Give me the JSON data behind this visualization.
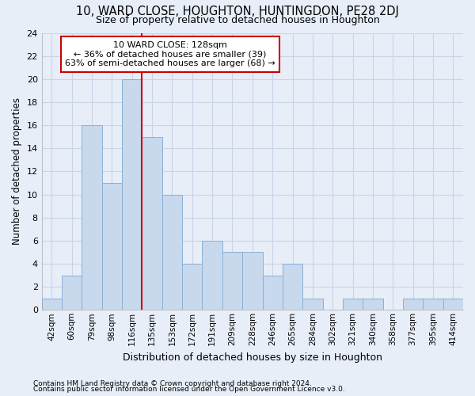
{
  "title": "10, WARD CLOSE, HOUGHTON, HUNTINGDON, PE28 2DJ",
  "subtitle": "Size of property relative to detached houses in Houghton",
  "xlabel": "Distribution of detached houses by size in Houghton",
  "ylabel": "Number of detached properties",
  "bin_labels": [
    "42sqm",
    "60sqm",
    "79sqm",
    "98sqm",
    "116sqm",
    "135sqm",
    "153sqm",
    "172sqm",
    "191sqm",
    "209sqm",
    "228sqm",
    "246sqm",
    "265sqm",
    "284sqm",
    "302sqm",
    "321sqm",
    "340sqm",
    "358sqm",
    "377sqm",
    "395sqm",
    "414sqm"
  ],
  "bar_values": [
    1,
    3,
    16,
    11,
    20,
    15,
    10,
    4,
    6,
    5,
    5,
    3,
    4,
    1,
    0,
    1,
    1,
    0,
    1,
    1,
    1
  ],
  "bar_color": "#c8d9ee",
  "bar_edgecolor": "#8ab0d4",
  "vline_color": "#cc0000",
  "vline_x": 4.5,
  "annotation_title": "10 WARD CLOSE: 128sqm",
  "annotation_line1": "← 36% of detached houses are smaller (39)",
  "annotation_line2": "63% of semi-detached houses are larger (68) →",
  "annotation_box_facecolor": "#ffffff",
  "annotation_box_edgecolor": "#cc0000",
  "grid_color": "#c8d4e8",
  "background_color": "#e8eef8",
  "footer1": "Contains HM Land Registry data © Crown copyright and database right 2024.",
  "footer2": "Contains public sector information licensed under the Open Government Licence v3.0.",
  "ylim": [
    0,
    24
  ],
  "yticks": [
    0,
    2,
    4,
    6,
    8,
    10,
    12,
    14,
    16,
    18,
    20,
    22,
    24
  ]
}
